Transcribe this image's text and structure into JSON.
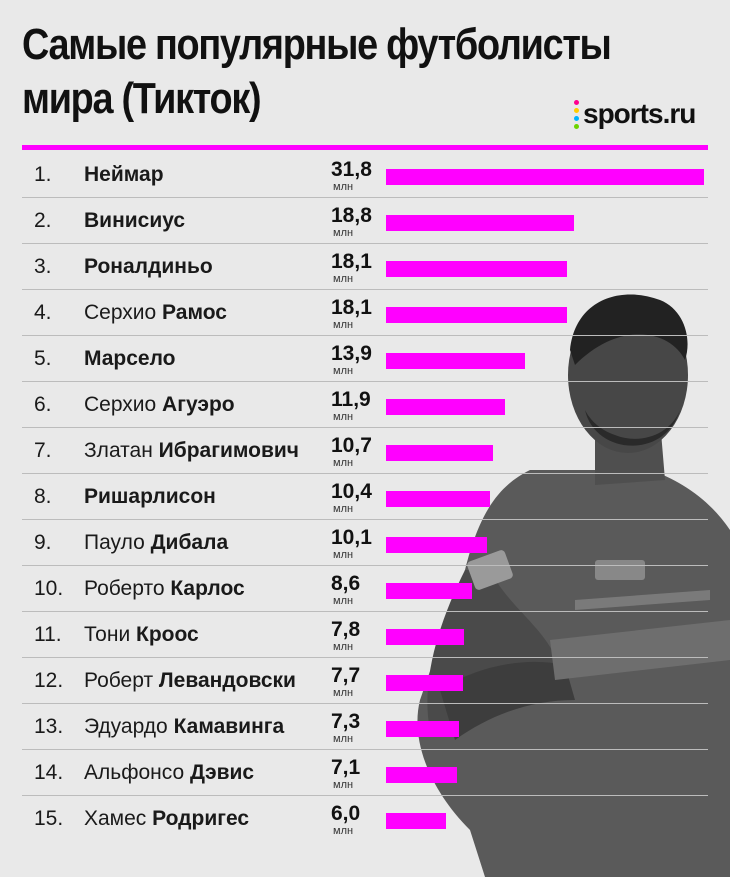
{
  "title_line1": "Самые популярные футболисты",
  "title_line2": "мира (Тикток)",
  "logo_text": "sports.ru",
  "logo_dot_colors": [
    "#ff0090",
    "#ffcc00",
    "#00b4ff",
    "#6dd400"
  ],
  "accent_color": "#ff00ff",
  "photo_subject_icon": "player-photo-icon",
  "chart_data": {
    "type": "bar",
    "orientation": "horizontal",
    "unit_label": "млн",
    "value_labels": [
      "31,8",
      "18,8",
      "18,1",
      "18,1",
      "13,9",
      "11,9",
      "10,7",
      "10,4",
      "10,1",
      "8,6",
      "7,8",
      "7,7",
      "7,3",
      "7,1",
      "6,0"
    ],
    "values": [
      31.8,
      18.8,
      18.1,
      18.1,
      13.9,
      11.9,
      10.7,
      10.4,
      10.1,
      8.6,
      7.8,
      7.7,
      7.3,
      7.1,
      6.0
    ],
    "ranks": [
      "1.",
      "2.",
      "3.",
      "4.",
      "5.",
      "6.",
      "7.",
      "8.",
      "9.",
      "10.",
      "11.",
      "12.",
      "13.",
      "14.",
      "15."
    ],
    "first_names": [
      "",
      "",
      "",
      "Серхио",
      "",
      "Серхио",
      "Златан",
      "",
      "Пауло",
      "Роберто",
      "Тони",
      "Роберт",
      "Эдуардо",
      "Альфонсо",
      "Хамес"
    ],
    "last_names": [
      "Неймар",
      "Винисиус",
      "Роналдиньо",
      "Рамос",
      "Марсело",
      "Агуэро",
      "Ибрагимович",
      "Ришарлисон",
      "Дибала",
      "Карлос",
      "Кроос",
      "Левандовски",
      "Камавинга",
      "Дэвис",
      "Родригес"
    ],
    "xlim": [
      0,
      31.8
    ],
    "grid": false,
    "legend": "none"
  }
}
